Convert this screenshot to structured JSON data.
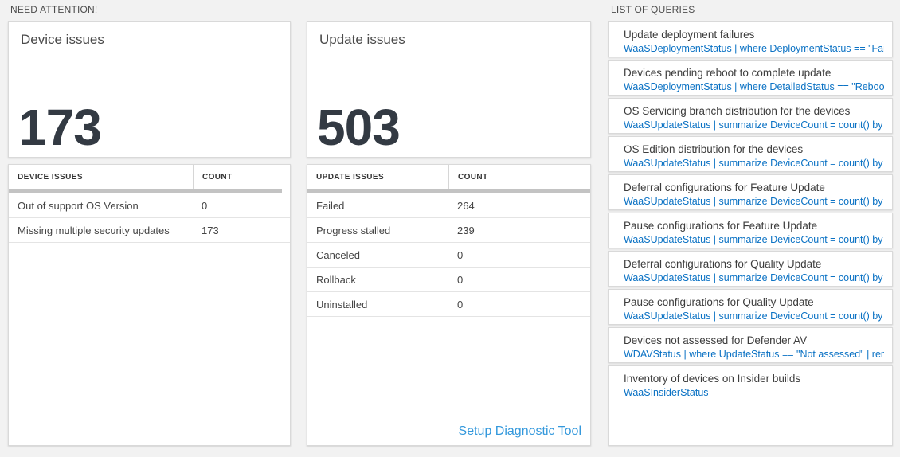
{
  "sections": {
    "need_attention": "NEED ATTENTION!",
    "list_of_queries": "LIST OF QUERIES"
  },
  "device_card": {
    "title": "Device issues",
    "count": "173"
  },
  "device_table": {
    "columns": [
      "DEVICE ISSUES",
      "COUNT"
    ],
    "rows": [
      {
        "label": "Out of support OS Version",
        "count": "0"
      },
      {
        "label": "Missing multiple security updates",
        "count": "173"
      }
    ]
  },
  "update_card": {
    "title": "Update issues",
    "count": "503"
  },
  "update_table": {
    "columns": [
      "UPDATE ISSUES",
      "COUNT"
    ],
    "rows": [
      {
        "label": "Failed",
        "count": "264"
      },
      {
        "label": "Progress stalled",
        "count": "239"
      },
      {
        "label": "Canceled",
        "count": "0"
      },
      {
        "label": "Rollback",
        "count": "0"
      },
      {
        "label": "Uninstalled",
        "count": "0"
      }
    ],
    "footer_link": "Setup Diagnostic Tool"
  },
  "queries": [
    {
      "title": "Update deployment failures",
      "query": "WaaSDeploymentStatus | where DeploymentStatus == \"Failed\" |..."
    },
    {
      "title": "Devices pending reboot to complete update",
      "query": "WaaSDeploymentStatus | where DetailedStatus == \"Reboot pend..."
    },
    {
      "title": "OS Servicing branch distribution for the devices",
      "query": "WaaSUpdateStatus | summarize DeviceCount = count() by OSSer..."
    },
    {
      "title": "OS Edition distribution for the devices",
      "query": "WaaSUpdateStatus | summarize DeviceCount = count() by OSEdit..."
    },
    {
      "title": "Deferral configurations for Feature Update",
      "query": "WaaSUpdateStatus | summarize DeviceCount = count() by Featur..."
    },
    {
      "title": "Pause configurations for Feature Update",
      "query": "WaaSUpdateStatus | summarize DeviceCount = count() by Featur..."
    },
    {
      "title": "Deferral configurations for Quality Update",
      "query": "WaaSUpdateStatus | summarize DeviceCount = count() by Qualit..."
    },
    {
      "title": "Pause configurations for Quality Update",
      "query": "WaaSUpdateStatus | summarize DeviceCount = count() by Qualit..."
    },
    {
      "title": "Devices not assessed for Defender AV",
      "query": "WDAVStatus | where UpdateStatus == \"Not assessed\" | render ta..."
    },
    {
      "title": "Inventory of devices on Insider builds",
      "query": "WaaSInsiderStatus"
    }
  ],
  "colors": {
    "background": "#f2f2f2",
    "card_border": "#d9d9d9",
    "big_number": "#333a43",
    "query_blue": "#0b72c4",
    "link_blue": "#3398dc",
    "table_header_bar": "#c3c3c3"
  }
}
